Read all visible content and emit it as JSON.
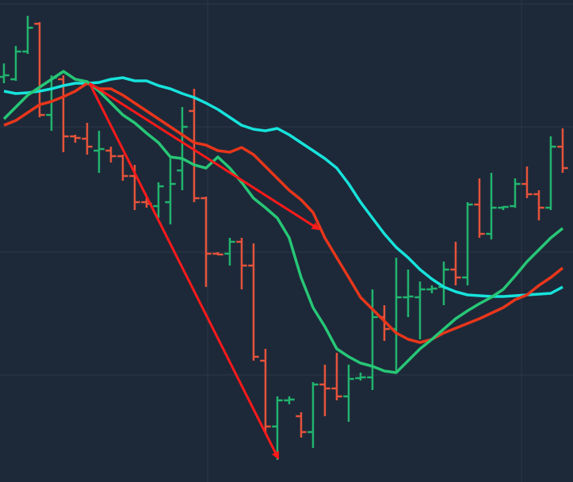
{
  "chart_data": {
    "type": "ohlc",
    "x": [
      0,
      1,
      2,
      3,
      4,
      5,
      6,
      7,
      8,
      9,
      10,
      11,
      12,
      13,
      14,
      15,
      16,
      17,
      18,
      19,
      20,
      21,
      22,
      23,
      24,
      25,
      26,
      27,
      28,
      29,
      30,
      31,
      32,
      33,
      34,
      35,
      36,
      37,
      38,
      39,
      40,
      41,
      42,
      43,
      44,
      45,
      46,
      47
    ],
    "xlim": [
      -0.33,
      47.87
    ],
    "ylim": [
      0,
      608
    ],
    "up_color": "#21b46e",
    "down_color": "#e5533b",
    "open": [
      511,
      508,
      543,
      578,
      463,
      508,
      436,
      433,
      418,
      418,
      411,
      386,
      353,
      348,
      353,
      393,
      468,
      358,
      288,
      288,
      303,
      273,
      153,
      70,
      103,
      83,
      63,
      123,
      118,
      108,
      131,
      132,
      208,
      193,
      233,
      233,
      243,
      246,
      268,
      258,
      350,
      313,
      346,
      348,
      376,
      363,
      346,
      423
    ],
    "high": [
      528,
      550,
      588,
      580,
      513,
      513,
      438,
      453,
      443,
      423,
      413,
      400,
      358,
      378,
      408,
      473,
      496,
      360,
      290,
      308,
      308,
      301,
      168,
      108,
      108,
      88,
      126,
      148,
      163,
      148,
      138,
      243,
      223,
      283,
      268,
      253,
      248,
      278,
      303,
      353,
      383,
      390,
      348,
      383,
      398,
      368,
      436,
      446
    ],
    "low": [
      503,
      506,
      540,
      460,
      443,
      416,
      428,
      413,
      390,
      403,
      380,
      343,
      346,
      333,
      325,
      368,
      353,
      246,
      286,
      273,
      243,
      153,
      63,
      28,
      98,
      56,
      43,
      83,
      103,
      76,
      128,
      116,
      178,
      138,
      208,
      180,
      238,
      223,
      248,
      248,
      308,
      306,
      343,
      346,
      358,
      330,
      343,
      390
    ],
    "close": [
      513,
      543,
      573,
      463,
      510,
      436,
      434,
      423,
      420,
      411,
      386,
      353,
      351,
      373,
      376,
      448,
      358,
      288,
      287,
      303,
      273,
      158,
      70,
      103,
      104,
      63,
      123,
      118,
      108,
      130,
      132,
      208,
      193,
      233,
      234,
      243,
      244,
      268,
      258,
      350,
      313,
      346,
      347,
      376,
      363,
      346,
      423,
      396
    ],
    "series": [
      {
        "color": "#17e3dc",
        "values": [
          493,
          490,
          491,
          493,
          496,
          500,
          503,
          503,
          504,
          508,
          510,
          506,
          506,
          500,
          496,
          490,
          485,
          478,
          470,
          460,
          450,
          445,
          443,
          446,
          438,
          428,
          418,
          408,
          396,
          376,
          353,
          333,
          313,
          296,
          283,
          268,
          256,
          246,
          240,
          236,
          235,
          234,
          234,
          235,
          236,
          237,
          238,
          246
        ]
      },
      {
        "color": "#e8361b",
        "values": [
          450,
          456,
          466,
          476,
          480,
          486,
          493,
          503,
          496,
          496,
          488,
          478,
          468,
          458,
          448,
          438,
          428,
          425,
          418,
          416,
          422,
          413,
          398,
          383,
          368,
          356,
          340,
          308,
          283,
          258,
          233,
          218,
          203,
          188,
          180,
          176,
          180,
          188,
          194,
          200,
          206,
          213,
          220,
          230,
          236,
          248,
          258,
          270
        ]
      },
      {
        "color": "#27c776",
        "values": [
          458,
          473,
          488,
          498,
          508,
          518,
          508,
          505,
          493,
          478,
          463,
          453,
          440,
          428,
          410,
          408,
          400,
          396,
          410,
          396,
          378,
          358,
          346,
          333,
          308,
          258,
          220,
          196,
          168,
          158,
          150,
          146,
          140,
          138,
          153,
          168,
          180,
          193,
          206,
          216,
          225,
          233,
          243,
          260,
          278,
          293,
          308,
          320
        ]
      }
    ]
  }
}
